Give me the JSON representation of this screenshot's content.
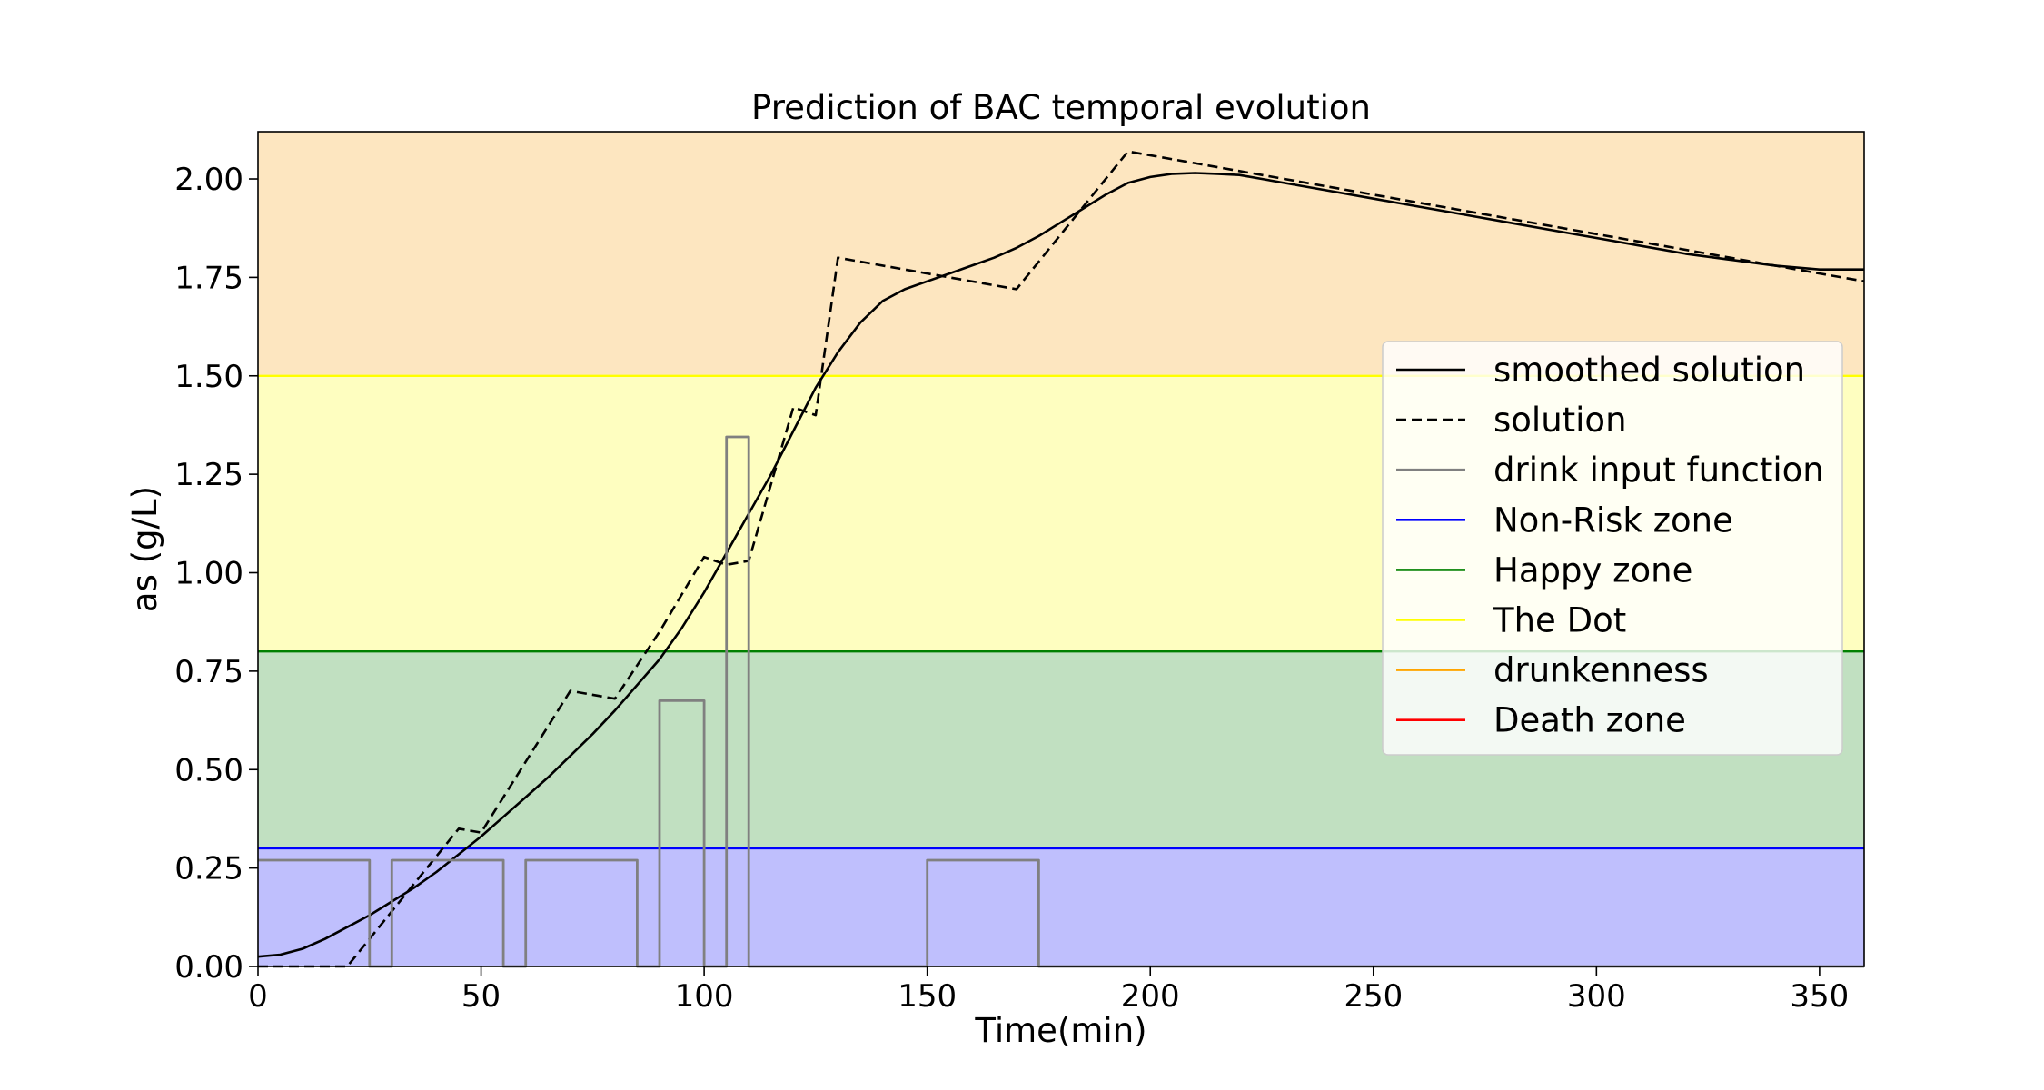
{
  "chart_data": {
    "type": "line",
    "title": "Prediction of BAC temporal evolution",
    "xlabel": "Time(min)",
    "ylabel": "as (g/L)",
    "xlim": [
      0,
      360
    ],
    "ylim": [
      0,
      2.12
    ],
    "xticks": [
      0,
      50,
      100,
      150,
      200,
      250,
      300,
      350
    ],
    "yticks": [
      0.0,
      0.25,
      0.5,
      0.75,
      1.0,
      1.25,
      1.5,
      1.75,
      2.0
    ],
    "xtick_labels": [
      "0",
      "50",
      "100",
      "150",
      "200",
      "250",
      "300",
      "350"
    ],
    "ytick_labels": [
      "0.00",
      "0.25",
      "0.50",
      "0.75",
      "1.00",
      "1.25",
      "1.50",
      "1.75",
      "2.00"
    ],
    "grid": false,
    "legend_position": "right",
    "zones": [
      {
        "from": 0.0,
        "to": 0.3,
        "color": "#bfbffd"
      },
      {
        "from": 0.3,
        "to": 0.8,
        "color": "#c1e0c1"
      },
      {
        "from": 0.8,
        "to": 1.5,
        "color": "#fefec0"
      },
      {
        "from": 1.5,
        "to": 2.12,
        "color": "#fde6c0"
      }
    ],
    "thresholds": [
      {
        "value": 0.3,
        "color": "#0000ff"
      },
      {
        "value": 0.8,
        "color": "#008000"
      },
      {
        "value": 1.5,
        "color": "#ffff00"
      }
    ],
    "series": [
      {
        "name": "smoothed solution",
        "color": "#000000",
        "dash": "solid",
        "x": [
          0,
          5,
          10,
          15,
          20,
          25,
          30,
          35,
          40,
          45,
          50,
          55,
          60,
          65,
          70,
          75,
          80,
          85,
          90,
          95,
          100,
          105,
          110,
          115,
          120,
          125,
          130,
          135,
          140,
          145,
          150,
          155,
          160,
          165,
          170,
          175,
          180,
          185,
          190,
          195,
          200,
          205,
          210,
          215,
          220,
          225,
          230,
          240,
          250,
          260,
          270,
          280,
          290,
          300,
          310,
          320,
          330,
          340,
          350,
          360
        ],
        "y": [
          0.025,
          0.03,
          0.045,
          0.07,
          0.1,
          0.13,
          0.165,
          0.2,
          0.24,
          0.285,
          0.33,
          0.38,
          0.43,
          0.48,
          0.535,
          0.59,
          0.65,
          0.715,
          0.78,
          0.86,
          0.95,
          1.05,
          1.15,
          1.25,
          1.36,
          1.47,
          1.56,
          1.635,
          1.69,
          1.72,
          1.74,
          1.76,
          1.78,
          1.8,
          1.825,
          1.855,
          1.89,
          1.925,
          1.96,
          1.99,
          2.005,
          2.013,
          2.015,
          2.013,
          2.01,
          2.0,
          1.99,
          1.97,
          1.95,
          1.93,
          1.91,
          1.89,
          1.87,
          1.85,
          1.83,
          1.81,
          1.795,
          1.78,
          1.77,
          1.77
        ]
      },
      {
        "name": "solution",
        "color": "#000000",
        "dash": "dashed",
        "x": [
          0,
          20,
          25,
          30,
          45,
          50,
          70,
          80,
          90,
          100,
          105,
          110,
          120,
          125,
          130,
          150,
          170,
          195,
          230,
          300,
          330,
          350,
          360
        ],
        "y": [
          0.0,
          0.0,
          0.07,
          0.14,
          0.35,
          0.34,
          0.7,
          0.68,
          0.85,
          1.04,
          1.02,
          1.03,
          1.42,
          1.4,
          1.8,
          1.76,
          1.72,
          2.07,
          2.0,
          1.86,
          1.8,
          1.76,
          1.74
        ]
      },
      {
        "name": "drink input function",
        "color": "#808080",
        "dash": "solid",
        "x": [
          0,
          25,
          25,
          30,
          30,
          55,
          55,
          60,
          60,
          85,
          85,
          90,
          90,
          100,
          100,
          105,
          105,
          110,
          110,
          150,
          150,
          175,
          175,
          360
        ],
        "y": [
          0.27,
          0.27,
          0,
          0,
          0.27,
          0.27,
          0,
          0,
          0.27,
          0.27,
          0,
          0,
          0.675,
          0.675,
          0,
          0,
          1.345,
          1.345,
          0,
          0,
          0.27,
          0.27,
          0,
          0
        ]
      }
    ],
    "legend": [
      {
        "label": "smoothed solution",
        "color": "#000000",
        "dash": "solid"
      },
      {
        "label": "solution",
        "color": "#000000",
        "dash": "dashed"
      },
      {
        "label": "drink input function",
        "color": "#808080",
        "dash": "solid"
      },
      {
        "label": "Non-Risk zone",
        "color": "#0000ff",
        "dash": "solid"
      },
      {
        "label": "Happy zone",
        "color": "#008000",
        "dash": "solid"
      },
      {
        "label": "The Dot",
        "color": "#ffff00",
        "dash": "solid"
      },
      {
        "label": "drunkenness",
        "color": "#ffa500",
        "dash": "solid"
      },
      {
        "label": "Death zone",
        "color": "#ff0000",
        "dash": "solid"
      }
    ]
  }
}
